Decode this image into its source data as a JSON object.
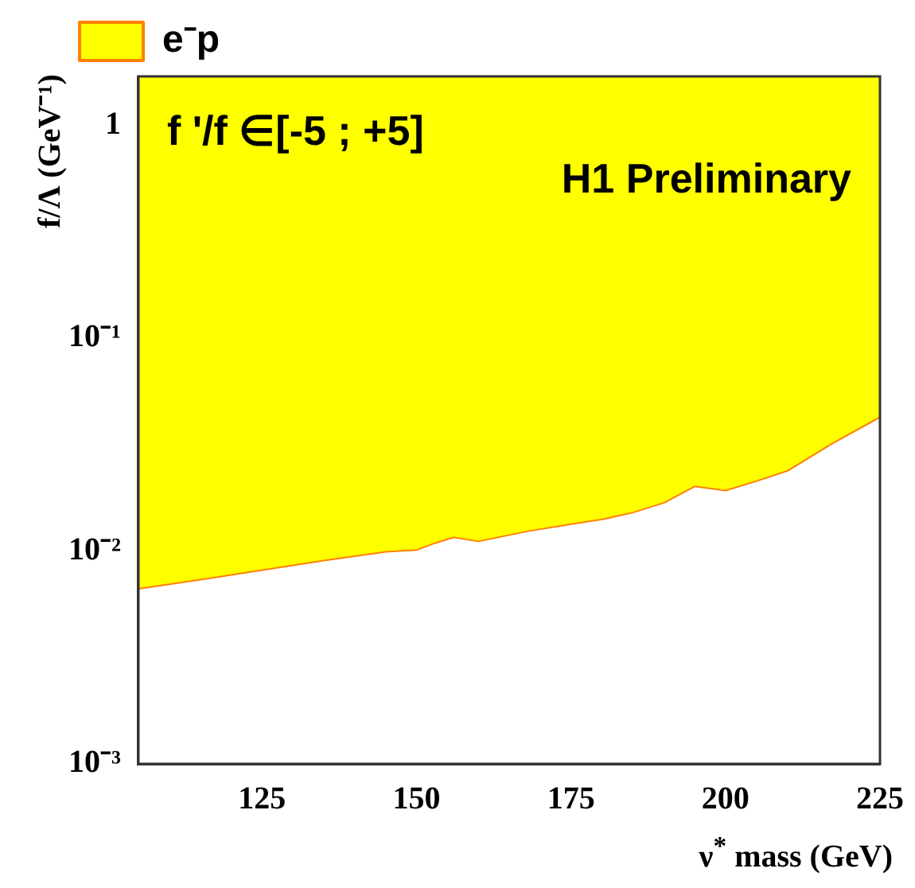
{
  "chart_data": {
    "type": "line",
    "xlabel": "ν$^{*}$ mass (GeV)",
    "ylabel": "f/Λ (GeV⁻¹)",
    "annotations": [
      "f '/f ∈[-5 ; +5]",
      "H1 Preliminary"
    ],
    "x": [
      105,
      115,
      125,
      135,
      145,
      150,
      153,
      156,
      160,
      168,
      175,
      180,
      185,
      190,
      195,
      200,
      205,
      210,
      217,
      225
    ],
    "series": [
      {
        "name": "e⁻p",
        "color": "#ff8000",
        "values": [
          0.0067,
          0.0074,
          0.0082,
          0.0091,
          0.01,
          0.0102,
          0.011,
          0.0117,
          0.0112,
          0.0125,
          0.0135,
          0.0142,
          0.0153,
          0.017,
          0.0203,
          0.0194,
          0.0215,
          0.024,
          0.032,
          0.043
        ],
        "lower": [
          0.0067,
          0.0074,
          0.0082,
          0.0091,
          0.01,
          0.0102,
          0.011,
          0.0117,
          0.0112,
          0.0125,
          0.0135,
          0.0142,
          0.0153,
          0.017,
          0.0203,
          0.0194,
          0.0215,
          0.024,
          0.032,
          0.043
        ],
        "upper": [
          1.7,
          1.7,
          1.7,
          1.7,
          1.7,
          1.7,
          1.7,
          1.7,
          1.7,
          1.7,
          1.7,
          1.7,
          1.7,
          1.7,
          1.7,
          1.7,
          1.7,
          1.7,
          1.7,
          1.7
        ]
      }
    ],
    "log": "y",
    "xlim": [
      105,
      225
    ],
    "ylim": [
      0.001,
      1.7
    ],
    "xticks": [
      125,
      150,
      175,
      200,
      225
    ],
    "yticks": [
      {
        "value": 0.001,
        "label": "10⁻³"
      },
      {
        "value": 0.01,
        "label": "10⁻²"
      },
      {
        "value": 0.1,
        "label": "10⁻¹"
      },
      1
    ],
    "grid": false,
    "legend": "top left"
  }
}
